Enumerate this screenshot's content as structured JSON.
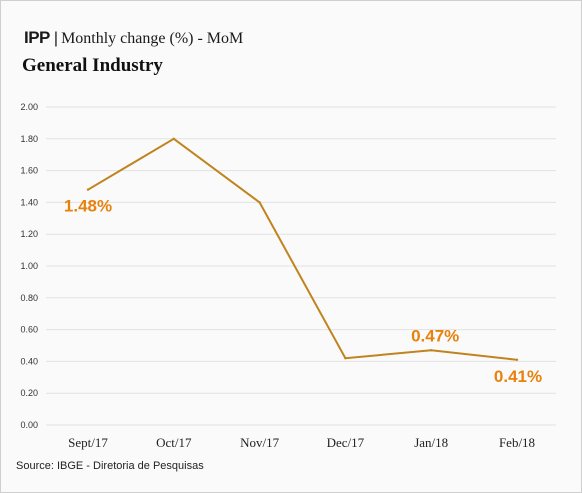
{
  "header": {
    "tag": "IPP",
    "separator": "|",
    "subtitle": "Monthly change (%) - MoM"
  },
  "title": "General Industry",
  "source": "Source: IBGE - Diretoria de Pesquisas",
  "colors": {
    "line": "#c0831e",
    "label": "#e8820c",
    "grid": "#e2e2e2"
  },
  "chart_data": {
    "type": "line",
    "title": "General Industry",
    "xlabel": "",
    "ylabel": "",
    "ylim": [
      0,
      2.0
    ],
    "yticks": [
      0,
      0.2,
      0.4,
      0.6,
      0.8,
      1.0,
      1.2,
      1.4,
      1.6,
      1.8,
      2.0
    ],
    "ytick_labels": [
      "0.00",
      "0.20",
      "0.40",
      "0.60",
      "0.80",
      "1.00",
      "1.20",
      "1.40",
      "1.60",
      "1.80",
      "2.00"
    ],
    "grid": true,
    "categories": [
      "Sept/17",
      "Oct/17",
      "Nov/17",
      "Dec/17",
      "Jan/18",
      "Feb/18"
    ],
    "series": [
      {
        "values": [
          1.48,
          1.8,
          1.4,
          0.42,
          0.47,
          0.41
        ]
      }
    ],
    "data_labels": [
      {
        "index": 0,
        "text": "1.48%"
      },
      {
        "index": 4,
        "text": "0.47%"
      },
      {
        "index": 5,
        "text": "0.41%"
      }
    ]
  }
}
